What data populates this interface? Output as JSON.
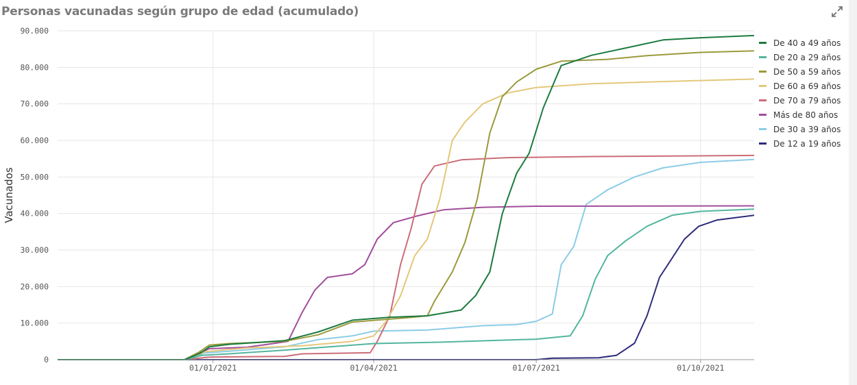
{
  "title": "Personas vacunadas según grupo de edad (acumulado)",
  "icons": {
    "expand": "expand-icon"
  },
  "chart_data": {
    "type": "line",
    "title": "Personas vacunadas según grupo de edad (acumulado)",
    "ylabel": "Vacunados",
    "xlabel": "",
    "x_range": [
      "2020-10-06",
      "2021-10-31"
    ],
    "ylim": [
      0,
      90000
    ],
    "y_ticks": [
      0,
      10000,
      20000,
      30000,
      40000,
      50000,
      60000,
      70000,
      80000,
      90000
    ],
    "y_tick_labels": [
      "0",
      "10.000",
      "20.000",
      "30.000",
      "40.000",
      "50.000",
      "60.000",
      "70.000",
      "80.000",
      "90.000"
    ],
    "x_ticks": [
      "2021-01-01",
      "2021-04-01",
      "2021-07-01",
      "2021-10-01"
    ],
    "x_tick_labels": [
      "01/01/2021",
      "01/04/2021",
      "01/07/2021",
      "01/10/2021"
    ],
    "grid": true,
    "legend_position": "right",
    "series": [
      {
        "name": "De 40 a 49 años",
        "color": "#1b7a3e",
        "points": [
          [
            "2020-10-06",
            0
          ],
          [
            "2020-12-16",
            0
          ],
          [
            "2020-12-25",
            1800
          ],
          [
            "2020-12-30",
            3500
          ],
          [
            "2021-01-10",
            4200
          ],
          [
            "2021-02-10",
            5200
          ],
          [
            "2021-03-01",
            7600
          ],
          [
            "2021-03-20",
            10800
          ],
          [
            "2021-04-10",
            11600
          ],
          [
            "2021-05-01",
            12000
          ],
          [
            "2021-05-20",
            13600
          ],
          [
            "2021-05-28",
            17500
          ],
          [
            "2021-06-05",
            24000
          ],
          [
            "2021-06-12",
            40000
          ],
          [
            "2021-06-20",
            51000
          ],
          [
            "2021-06-27",
            56500
          ],
          [
            "2021-07-05",
            69000
          ],
          [
            "2021-07-15",
            80500
          ],
          [
            "2021-08-01",
            83300
          ],
          [
            "2021-08-20",
            85300
          ],
          [
            "2021-09-10",
            87500
          ],
          [
            "2021-10-01",
            88100
          ],
          [
            "2021-10-31",
            88700
          ]
        ]
      },
      {
        "name": "De 20 a 29 años",
        "color": "#52b59e",
        "points": [
          [
            "2020-10-06",
            0
          ],
          [
            "2020-12-16",
            0
          ],
          [
            "2020-12-26",
            1200
          ],
          [
            "2021-01-10",
            1600
          ],
          [
            "2021-02-10",
            2600
          ],
          [
            "2021-03-10",
            3600
          ],
          [
            "2021-04-01",
            4400
          ],
          [
            "2021-05-10",
            4800
          ],
          [
            "2021-06-10",
            5300
          ],
          [
            "2021-07-01",
            5600
          ],
          [
            "2021-07-20",
            6500
          ],
          [
            "2021-07-27",
            12000
          ],
          [
            "2021-08-03",
            22000
          ],
          [
            "2021-08-10",
            28500
          ],
          [
            "2021-08-20",
            32500
          ],
          [
            "2021-09-01",
            36500
          ],
          [
            "2021-09-15",
            39500
          ],
          [
            "2021-10-01",
            40600
          ],
          [
            "2021-10-31",
            41200
          ]
        ]
      },
      {
        "name": "De 50 a 59 años",
        "color": "#9a9a3c",
        "points": [
          [
            "2020-10-06",
            0
          ],
          [
            "2020-12-16",
            0
          ],
          [
            "2020-12-24",
            2000
          ],
          [
            "2020-12-30",
            4000
          ],
          [
            "2021-01-10",
            4400
          ],
          [
            "2021-02-10",
            5000
          ],
          [
            "2021-03-01",
            6800
          ],
          [
            "2021-03-20",
            10300
          ],
          [
            "2021-04-20",
            11500
          ],
          [
            "2021-05-01",
            12000
          ],
          [
            "2021-05-05",
            16000
          ],
          [
            "2021-05-15",
            24000
          ],
          [
            "2021-05-22",
            32000
          ],
          [
            "2021-05-29",
            44000
          ],
          [
            "2021-06-05",
            62000
          ],
          [
            "2021-06-12",
            72000
          ],
          [
            "2021-06-20",
            76000
          ],
          [
            "2021-07-01",
            79500
          ],
          [
            "2021-07-15",
            81700
          ],
          [
            "2021-08-10",
            82200
          ],
          [
            "2021-09-01",
            83200
          ],
          [
            "2021-10-01",
            84100
          ],
          [
            "2021-10-31",
            84500
          ]
        ]
      },
      {
        "name": "De 60 a 69 años",
        "color": "#e4c77a",
        "points": [
          [
            "2020-10-06",
            0
          ],
          [
            "2020-12-16",
            0
          ],
          [
            "2020-12-28",
            2200
          ],
          [
            "2021-01-20",
            3200
          ],
          [
            "2021-02-20",
            3800
          ],
          [
            "2021-03-20",
            5000
          ],
          [
            "2021-04-01",
            6500
          ],
          [
            "2021-04-08",
            10500
          ],
          [
            "2021-04-16",
            17500
          ],
          [
            "2021-04-24",
            28500
          ],
          [
            "2021-05-01",
            33000
          ],
          [
            "2021-05-08",
            44000
          ],
          [
            "2021-05-15",
            60000
          ],
          [
            "2021-05-22",
            65000
          ],
          [
            "2021-06-01",
            70000
          ],
          [
            "2021-06-15",
            73000
          ],
          [
            "2021-07-01",
            74500
          ],
          [
            "2021-08-01",
            75500
          ],
          [
            "2021-09-01",
            76000
          ],
          [
            "2021-10-31",
            76800
          ]
        ]
      },
      {
        "name": "De 70 a 79 años",
        "color": "#cb6c79",
        "points": [
          [
            "2020-10-06",
            0
          ],
          [
            "2020-12-16",
            0
          ],
          [
            "2020-12-30",
            700
          ],
          [
            "2021-02-10",
            900
          ],
          [
            "2021-02-20",
            1600
          ],
          [
            "2021-03-30",
            1900
          ],
          [
            "2021-04-03",
            5000
          ],
          [
            "2021-04-10",
            12000
          ],
          [
            "2021-04-16",
            26000
          ],
          [
            "2021-04-22",
            36000
          ],
          [
            "2021-04-28",
            48000
          ],
          [
            "2021-05-05",
            53000
          ],
          [
            "2021-05-20",
            54700
          ],
          [
            "2021-06-15",
            55300
          ],
          [
            "2021-08-01",
            55600
          ],
          [
            "2021-10-31",
            55900
          ]
        ]
      },
      {
        "name": "Más de 80 años",
        "color": "#a24d9a",
        "points": [
          [
            "2020-10-06",
            0
          ],
          [
            "2020-12-16",
            0
          ],
          [
            "2020-12-30",
            3000
          ],
          [
            "2021-01-20",
            3400
          ],
          [
            "2021-02-05",
            4500
          ],
          [
            "2021-02-12",
            5000
          ],
          [
            "2021-02-20",
            13000
          ],
          [
            "2021-02-27",
            19000
          ],
          [
            "2021-03-06",
            22500
          ],
          [
            "2021-03-20",
            23500
          ],
          [
            "2021-03-27",
            26000
          ],
          [
            "2021-04-03",
            33000
          ],
          [
            "2021-04-12",
            37500
          ],
          [
            "2021-04-25",
            39300
          ],
          [
            "2021-05-10",
            41000
          ],
          [
            "2021-06-01",
            41700
          ],
          [
            "2021-07-01",
            42000
          ],
          [
            "2021-10-31",
            42100
          ]
        ]
      },
      {
        "name": "De 30 a 39 años",
        "color": "#8bcce6",
        "points": [
          [
            "2020-10-06",
            0
          ],
          [
            "2020-12-16",
            0
          ],
          [
            "2020-12-27",
            1800
          ],
          [
            "2021-01-10",
            2300
          ],
          [
            "2021-02-10",
            3500
          ],
          [
            "2021-03-01",
            5500
          ],
          [
            "2021-03-20",
            6500
          ],
          [
            "2021-04-01",
            7800
          ],
          [
            "2021-05-01",
            8100
          ],
          [
            "2021-06-01",
            9300
          ],
          [
            "2021-06-20",
            9600
          ],
          [
            "2021-07-01",
            10500
          ],
          [
            "2021-07-10",
            12500
          ],
          [
            "2021-07-15",
            26000
          ],
          [
            "2021-07-22",
            31000
          ],
          [
            "2021-07-29",
            42500
          ],
          [
            "2021-08-10",
            46500
          ],
          [
            "2021-08-25",
            50000
          ],
          [
            "2021-09-10",
            52500
          ],
          [
            "2021-10-01",
            54000
          ],
          [
            "2021-10-31",
            54800
          ]
        ]
      },
      {
        "name": "De 12 a 19 años",
        "color": "#2c2a7a",
        "points": [
          [
            "2020-10-06",
            0
          ],
          [
            "2021-07-01",
            0
          ],
          [
            "2021-07-10",
            400
          ],
          [
            "2021-08-05",
            500
          ],
          [
            "2021-08-15",
            1200
          ],
          [
            "2021-08-25",
            4500
          ],
          [
            "2021-09-01",
            12000
          ],
          [
            "2021-09-08",
            22500
          ],
          [
            "2021-09-14",
            27000
          ],
          [
            "2021-09-22",
            33000
          ],
          [
            "2021-09-30",
            36500
          ],
          [
            "2021-10-10",
            38200
          ],
          [
            "2021-10-31",
            39500
          ]
        ]
      }
    ]
  }
}
